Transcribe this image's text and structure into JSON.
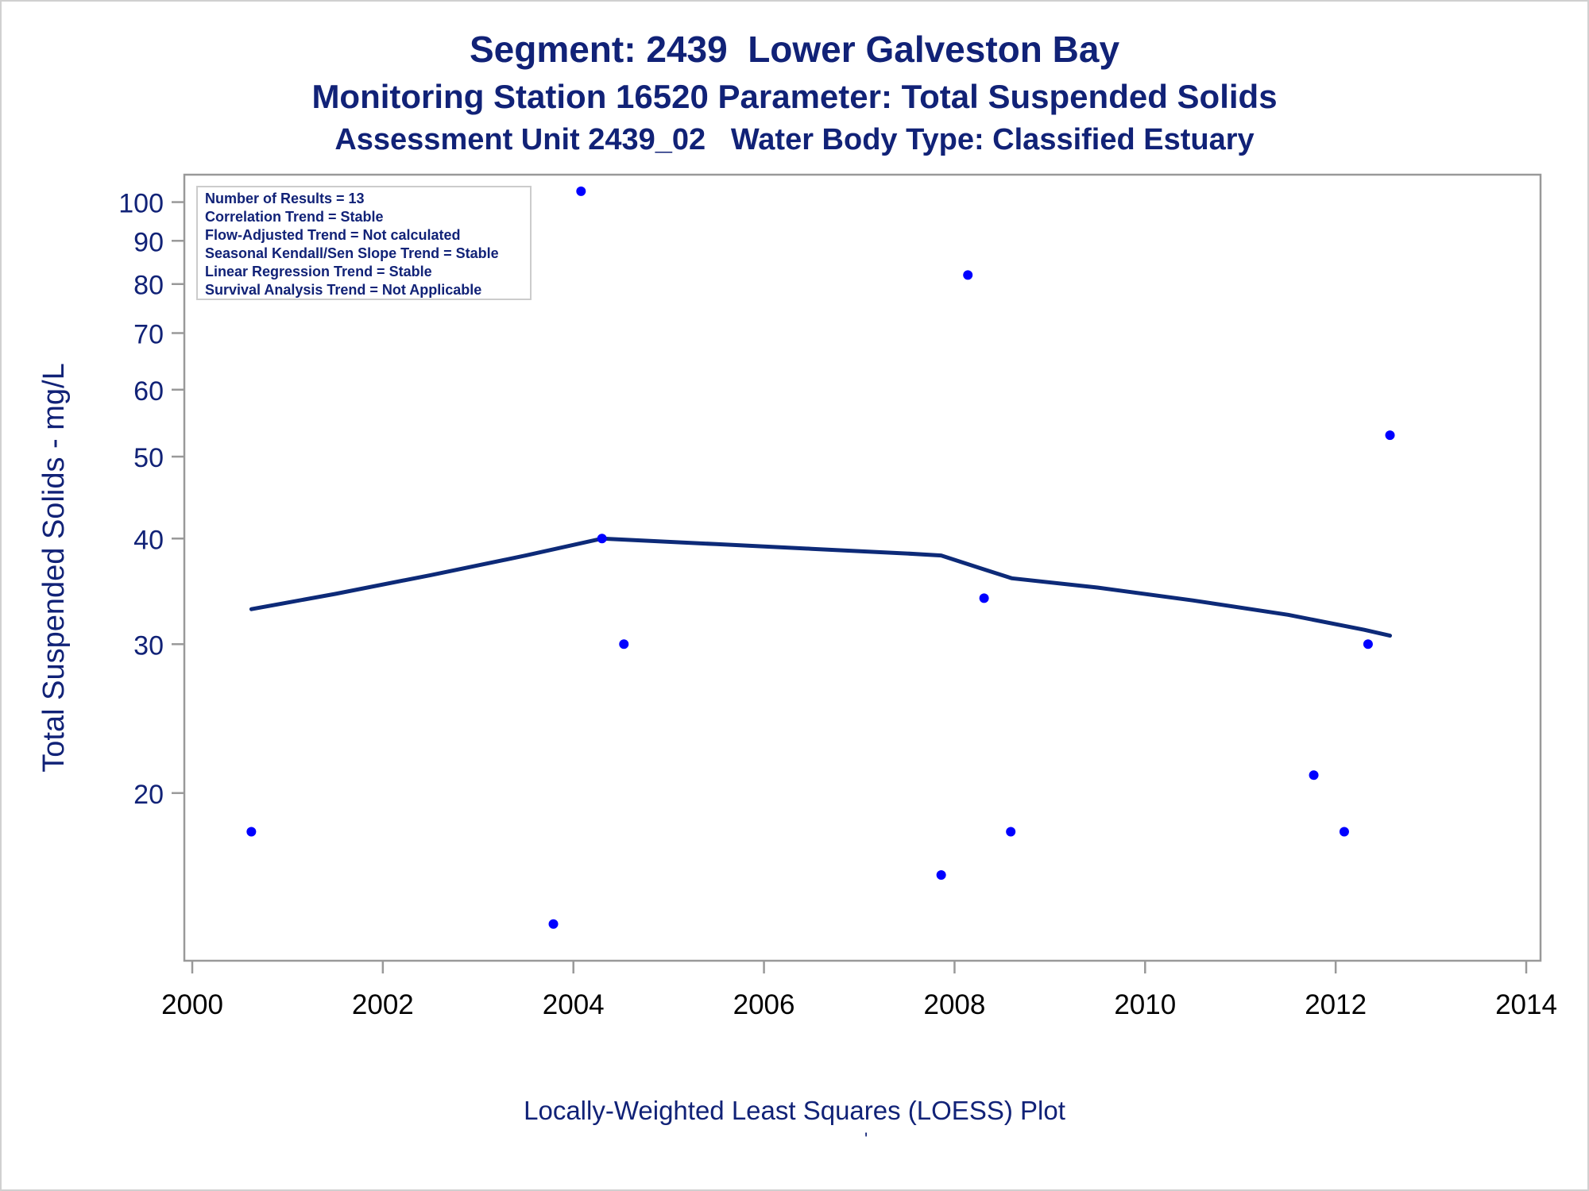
{
  "title": "Segment: 2439  Lower Galveston Bay",
  "subtitle": "Monitoring Station 16520 Parameter: Total Suspended Solids",
  "subtitle2": "Assessment Unit 2439_02   Water Body Type: Classified Estuary",
  "footnote": "Locally-Weighted Least Squares (LOESS) Plot",
  "footnote_mark": "'",
  "colors": {
    "text": "#112277",
    "points": "#0000ff",
    "line": "#0d2a78",
    "frame": "#999999"
  },
  "chart_data": {
    "type": "scatter",
    "title": "Segment: 2439  Lower Galveston Bay",
    "xlabel": "",
    "ylabel": "Total Suspended Solids - mg/L",
    "y_scale": "log",
    "xlim": [
      2000,
      2014
    ],
    "ylim": [
      13,
      105
    ],
    "x_ticks": [
      2000,
      2002,
      2004,
      2006,
      2008,
      2010,
      2012,
      2014
    ],
    "y_ticks": [
      20,
      30,
      40,
      50,
      60,
      70,
      80,
      90,
      100
    ],
    "grid": false,
    "legend": "none",
    "stats_box": [
      "Number of Results = 13",
      "Correlation Trend = Stable",
      "Flow-Adjusted Trend = Not calculated",
      "Seasonal Kendall/Sen Slope Trend = Stable",
      "Linear Regression Trend = Stable",
      "Survival Analysis Trend = Not Applicable"
    ],
    "series": [
      {
        "kind": "points",
        "x": [
          2000.62,
          2003.79,
          2004.08,
          2004.3,
          2004.53,
          2007.86,
          2008.14,
          2008.31,
          2008.59,
          2011.77,
          2012.09,
          2012.34,
          2012.57
        ],
        "y": [
          18,
          14,
          103,
          40,
          30,
          16,
          82,
          34,
          18,
          21,
          18,
          30,
          53
        ]
      },
      {
        "kind": "loess",
        "x": [
          2000.62,
          2001.5,
          2002.5,
          2003.5,
          2004.3,
          2005.5,
          2006.5,
          2007.5,
          2007.86,
          2008.3,
          2008.6,
          2009.5,
          2010.5,
          2011.5,
          2012.3,
          2012.57
        ],
        "y": [
          33.0,
          34.4,
          36.2,
          38.2,
          40.0,
          39.4,
          38.9,
          38.4,
          38.2,
          36.8,
          35.9,
          35.0,
          33.8,
          32.5,
          31.2,
          30.7
        ]
      }
    ]
  }
}
